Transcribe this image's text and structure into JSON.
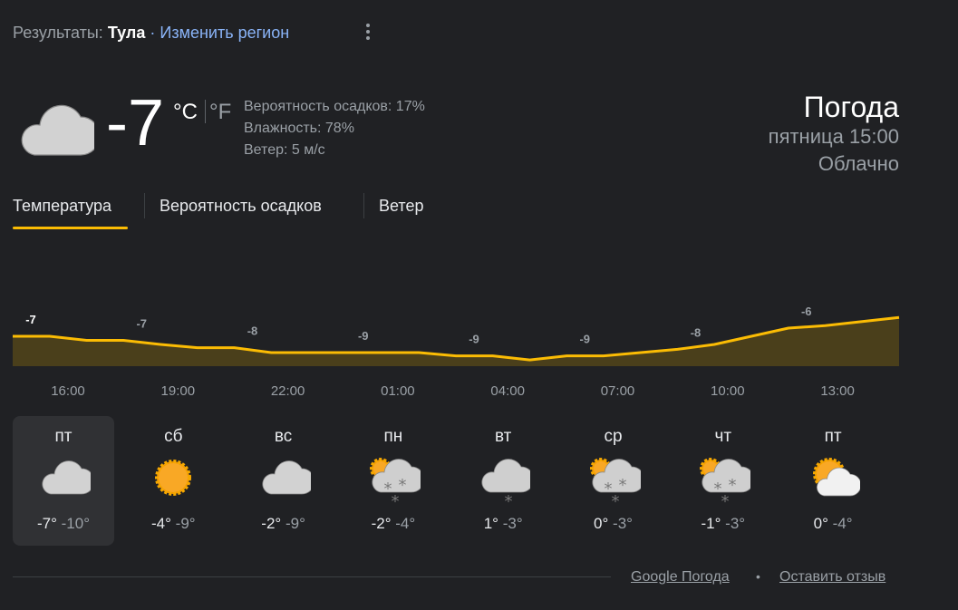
{
  "header": {
    "results_label": "Результаты:",
    "city": "Тула",
    "separator": "·",
    "change_region": "Изменить регион"
  },
  "current": {
    "temp": "-7",
    "unit_c": "°C",
    "unit_f": "°F",
    "icon": "cloudy",
    "precip": "Вероятность осадков: 17%",
    "humidity": "Влажность: 78%",
    "wind": "Ветер: 5 м/с"
  },
  "summary": {
    "title": "Погода",
    "datetime": "пятница 15:00",
    "condition": "Облачно"
  },
  "tabs": [
    {
      "label": "Температура",
      "active": true
    },
    {
      "label": "Вероятность осадков"
    },
    {
      "label": "Ветер"
    }
  ],
  "colors": {
    "accent": "#fbbc04",
    "fill": "#4a3f1b"
  },
  "chart_data": {
    "type": "area",
    "time_labels": [
      "16:00",
      "19:00",
      "22:00",
      "01:00",
      "04:00",
      "07:00",
      "10:00",
      "13:00"
    ],
    "point_labels": [
      "-7",
      "-7",
      "-8",
      "-9",
      "-9",
      "-9",
      "-8",
      "-6"
    ],
    "hourly_values": [
      -7,
      -7,
      -7.5,
      -7.5,
      -8,
      -8.4,
      -8.4,
      -9,
      -9,
      -9,
      -9,
      -9,
      -9.4,
      -9.4,
      -9.9,
      -9.4,
      -9.4,
      -9,
      -8.6,
      -8,
      -7,
      -6,
      -5.7,
      -5.2,
      -4.7
    ]
  },
  "days": [
    {
      "name": "пт",
      "hi": "-7°",
      "lo": "-10°",
      "icon": "cloudy",
      "selected": true
    },
    {
      "name": "сб",
      "hi": "-4°",
      "lo": "-9°",
      "icon": "sunny"
    },
    {
      "name": "вс",
      "hi": "-2°",
      "lo": "-9°",
      "icon": "cloudy"
    },
    {
      "name": "пн",
      "hi": "-2°",
      "lo": "-4°",
      "icon": "partly-cloudy-snow"
    },
    {
      "name": "вт",
      "hi": "1°",
      "lo": "-3°",
      "icon": "cloudy-light-snow"
    },
    {
      "name": "ср",
      "hi": "0°",
      "lo": "-3°",
      "icon": "partly-cloudy-snow"
    },
    {
      "name": "чт",
      "hi": "-1°",
      "lo": "-3°",
      "icon": "partly-cloudy-snow"
    },
    {
      "name": "пт",
      "hi": "0°",
      "lo": "-4°",
      "icon": "partly-cloudy"
    }
  ],
  "footer": {
    "source": "Google Погода",
    "bullet": "•",
    "feedback": "Оставить отзыв"
  }
}
